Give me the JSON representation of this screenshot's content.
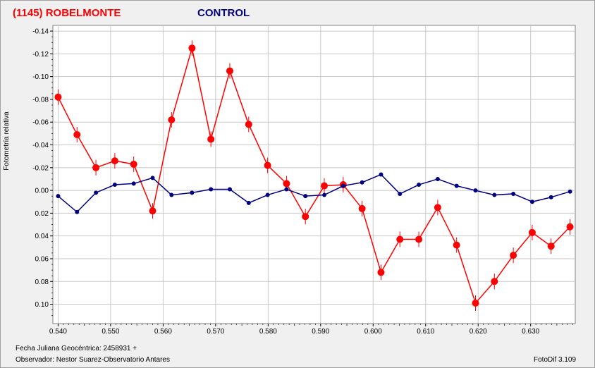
{
  "header": {
    "target_label": "(1145) ROBELMONTE",
    "control_label": "CONTROL"
  },
  "footer": {
    "jd_label": "Fecha Juliana Geocéntrica: 2458931 +",
    "observer_label": "Observador: Nestor Suarez-Observatorio Antares",
    "software_label": "FotoDif 3.109"
  },
  "colors": {
    "target": "#ff0000",
    "control": "#000080",
    "grid": "#c8c8c8",
    "plot_bg": "#ffffff"
  },
  "chart_data": {
    "type": "line",
    "ylabel": "Fotometría relativa",
    "xlabel": "",
    "xlim": [
      0.539,
      0.6385
    ],
    "ylim": [
      -0.145,
      0.117
    ],
    "y_inverted": true,
    "grid": true,
    "x_ticks": [
      "0.540",
      "0.550",
      "0.560",
      "0.570",
      "0.580",
      "0.590",
      "0.600",
      "0.610",
      "0.620",
      "0.630"
    ],
    "y_ticks": [
      "-0.14",
      "-0.12",
      "-0.10",
      "-0.08",
      "-0.06",
      "-0.04",
      "-0.02",
      "0.00",
      "0.02",
      "0.04",
      "0.06",
      "0.08",
      "0.10"
    ],
    "series": [
      {
        "name": "(1145) ROBELMONTE",
        "error_bars": true,
        "points": [
          [
            0.54,
            -0.082
          ],
          [
            0.5436,
            -0.049
          ],
          [
            0.5472,
            -0.02
          ],
          [
            0.5508,
            -0.026
          ],
          [
            0.5544,
            -0.023
          ],
          [
            0.558,
            0.018
          ],
          [
            0.5616,
            -0.062
          ],
          [
            0.5655,
            -0.125
          ],
          [
            0.5691,
            -0.045
          ],
          [
            0.5727,
            -0.105
          ],
          [
            0.5763,
            -0.058
          ],
          [
            0.5799,
            -0.022
          ],
          [
            0.5835,
            -0.006
          ],
          [
            0.5871,
            0.023
          ],
          [
            0.5907,
            -0.004
          ],
          [
            0.5943,
            -0.005
          ],
          [
            0.5979,
            0.016
          ],
          [
            0.6015,
            0.072
          ],
          [
            0.6051,
            0.043
          ],
          [
            0.6087,
            0.043
          ],
          [
            0.6123,
            0.015
          ],
          [
            0.6159,
            0.048
          ],
          [
            0.6195,
            0.099
          ],
          [
            0.6231,
            0.08
          ],
          [
            0.6267,
            0.057
          ],
          [
            0.6303,
            0.037
          ],
          [
            0.6339,
            0.049
          ],
          [
            0.6375,
            0.032
          ]
        ]
      },
      {
        "name": "CONTROL",
        "error_bars": false,
        "points": [
          [
            0.54,
            0.005
          ],
          [
            0.5436,
            0.019
          ],
          [
            0.5472,
            0.002
          ],
          [
            0.5508,
            -0.005
          ],
          [
            0.5544,
            -0.006
          ],
          [
            0.558,
            -0.011
          ],
          [
            0.5616,
            0.004
          ],
          [
            0.5655,
            0.002
          ],
          [
            0.5691,
            -0.001
          ],
          [
            0.5727,
            -0.001
          ],
          [
            0.5763,
            0.011
          ],
          [
            0.5799,
            0.004
          ],
          [
            0.5835,
            -0.001
          ],
          [
            0.5871,
            0.005
          ],
          [
            0.5907,
            0.004
          ],
          [
            0.5943,
            -0.004
          ],
          [
            0.5979,
            -0.007
          ],
          [
            0.6015,
            -0.014
          ],
          [
            0.6051,
            0.003
          ],
          [
            0.6087,
            -0.005
          ],
          [
            0.6123,
            -0.01
          ],
          [
            0.6159,
            -0.004
          ],
          [
            0.6195,
            0.0
          ],
          [
            0.6231,
            0.004
          ],
          [
            0.6267,
            0.003
          ],
          [
            0.6303,
            0.01
          ],
          [
            0.6339,
            0.006
          ],
          [
            0.6375,
            0.001
          ]
        ]
      }
    ]
  }
}
